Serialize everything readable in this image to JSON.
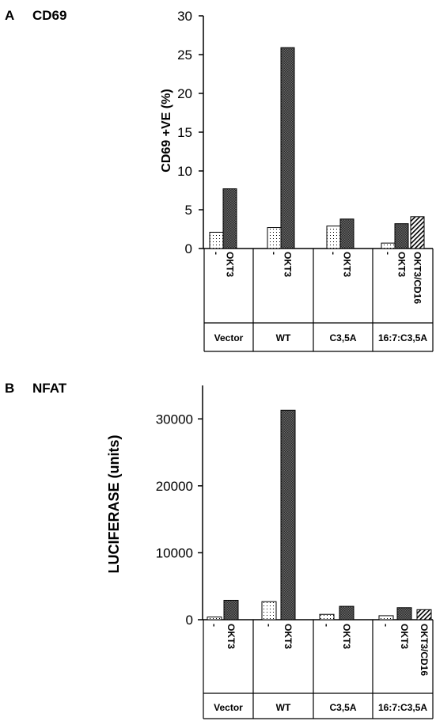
{
  "panels": [
    {
      "letter": "A",
      "title": "CD69",
      "chart_data": {
        "type": "bar",
        "ylabel": "CD69 +VE (%)",
        "ylim": [
          0,
          30
        ],
        "yticks": [
          0,
          5,
          10,
          15,
          20,
          25,
          30
        ],
        "groups": [
          {
            "name": "Vector",
            "bars": [
              {
                "label": "-",
                "value": 2.1,
                "pattern": "dots"
              },
              {
                "label": "OKT3",
                "value": 7.7,
                "pattern": "crosshatch"
              }
            ]
          },
          {
            "name": "WT",
            "bars": [
              {
                "label": "-",
                "value": 2.7,
                "pattern": "dots"
              },
              {
                "label": "OKT3",
                "value": 25.9,
                "pattern": "crosshatch"
              }
            ]
          },
          {
            "name": "C3,5A",
            "bars": [
              {
                "label": "-",
                "value": 2.9,
                "pattern": "dots"
              },
              {
                "label": "OKT3",
                "value": 3.8,
                "pattern": "crosshatch"
              }
            ]
          },
          {
            "name": "16:7:C3,5A",
            "bars": [
              {
                "label": "-",
                "value": 0.7,
                "pattern": "dots"
              },
              {
                "label": "OKT3",
                "value": 3.2,
                "pattern": "crosshatch"
              },
              {
                "label": "OKT3/CD16",
                "value": 4.1,
                "pattern": "diagonal"
              }
            ]
          }
        ]
      }
    },
    {
      "letter": "B",
      "title": "NFAT",
      "chart_data": {
        "type": "bar",
        "ylabel": "LUCIFERASE (units)",
        "ylim": [
          0,
          35000
        ],
        "yticks": [
          0,
          10000,
          20000,
          30000
        ],
        "groups": [
          {
            "name": "Vector",
            "bars": [
              {
                "label": "-",
                "value": 400,
                "pattern": "dots"
              },
              {
                "label": "OKT3",
                "value": 2900,
                "pattern": "crosshatch"
              }
            ]
          },
          {
            "name": "WT",
            "bars": [
              {
                "label": "-",
                "value": 2700,
                "pattern": "dots"
              },
              {
                "label": "OKT3",
                "value": 31300,
                "pattern": "crosshatch"
              }
            ]
          },
          {
            "name": "C3,5A",
            "bars": [
              {
                "label": "-",
                "value": 800,
                "pattern": "dots"
              },
              {
                "label": "OKT3",
                "value": 2000,
                "pattern": "crosshatch"
              }
            ]
          },
          {
            "name": "16:7:C3,5A",
            "bars": [
              {
                "label": "-",
                "value": 600,
                "pattern": "dots"
              },
              {
                "label": "OKT3",
                "value": 1800,
                "pattern": "crosshatch"
              },
              {
                "label": "OKT3/CD16",
                "value": 1500,
                "pattern": "diagonal"
              }
            ]
          }
        ]
      }
    }
  ]
}
